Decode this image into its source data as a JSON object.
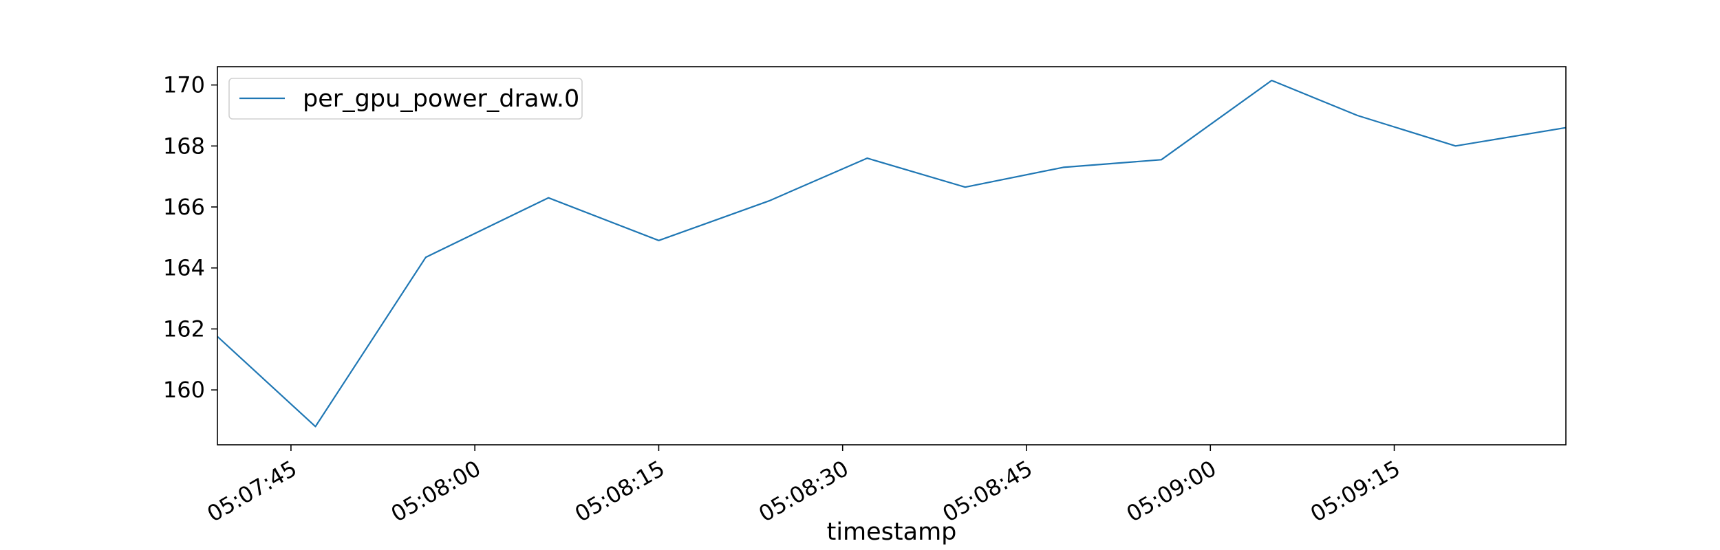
{
  "chart_data": {
    "type": "line",
    "title": "",
    "xlabel": "timestamp",
    "ylabel": "",
    "x_unit": "time (HH:MM:SS)",
    "x_ticks": [
      "05:07:45",
      "05:08:00",
      "05:08:15",
      "05:08:30",
      "05:08:45",
      "05:09:00",
      "05:09:15"
    ],
    "y_ticks": [
      160,
      162,
      164,
      166,
      168,
      170
    ],
    "xlim": [
      "05:07:39",
      "05:09:29"
    ],
    "ylim": [
      158.2,
      170.6
    ],
    "grid": false,
    "legend": {
      "placement": "top-left"
    },
    "series": [
      {
        "name": "per_gpu_power_draw.0",
        "color": "#1f77b4",
        "points": [
          {
            "t": "05:07:39",
            "y": 161.75
          },
          {
            "t": "05:07:47",
            "y": 158.8
          },
          {
            "t": "05:07:56",
            "y": 164.35
          },
          {
            "t": "05:08:06",
            "y": 166.3
          },
          {
            "t": "05:08:15",
            "y": 164.9
          },
          {
            "t": "05:08:24",
            "y": 166.2
          },
          {
            "t": "05:08:32",
            "y": 167.6
          },
          {
            "t": "05:08:40",
            "y": 166.65
          },
          {
            "t": "05:08:48",
            "y": 167.3
          },
          {
            "t": "05:08:56",
            "y": 167.55
          },
          {
            "t": "05:09:05",
            "y": 170.15
          },
          {
            "t": "05:09:12",
            "y": 169.0
          },
          {
            "t": "05:09:20",
            "y": 168.0
          },
          {
            "t": "05:09:29",
            "y": 168.6
          }
        ]
      }
    ]
  }
}
